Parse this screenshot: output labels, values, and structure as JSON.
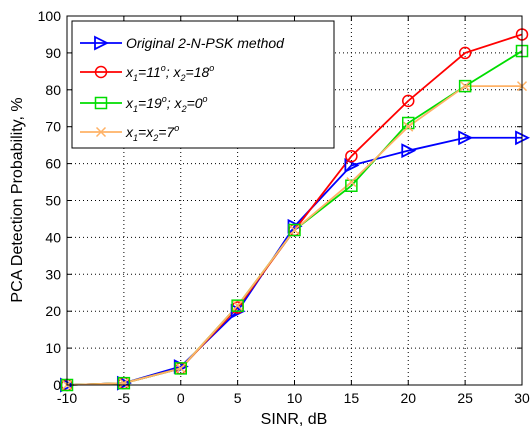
{
  "chart_data": {
    "type": "line",
    "xlabel": "SINR, dB",
    "ylabel": "PCA Detection Probability, %",
    "xlim": [
      -10,
      30
    ],
    "ylim": [
      0,
      100
    ],
    "x_ticks": [
      -10,
      -5,
      0,
      5,
      10,
      15,
      20,
      25,
      30
    ],
    "y_ticks": [
      0,
      10,
      20,
      30,
      40,
      50,
      60,
      70,
      80,
      90,
      100
    ],
    "grid": true,
    "legend_position": "top-left",
    "x": [
      -10,
      -5,
      0,
      5,
      10,
      15,
      20,
      25,
      30
    ],
    "series": [
      {
        "name": "Original 2-N-PSK method",
        "legend": {
          "text": "Original 2-N-PSK method"
        },
        "color": "#0000ff",
        "marker": "triangle-right",
        "values": [
          0,
          0.5,
          5,
          20,
          43,
          59.5,
          63.5,
          67,
          67
        ]
      },
      {
        "name": "x1=11o; x2=18o",
        "legend": {
          "p1": "x",
          "s1": "1",
          "p2": "=11",
          "sup1": "o",
          "p3": "; x",
          "s2": "2",
          "p4": "=18",
          "sup2": "o"
        },
        "color": "#ff0000",
        "marker": "circle",
        "values": [
          0,
          0.5,
          4.5,
          21,
          42,
          62,
          77,
          90,
          95
        ]
      },
      {
        "name": "x1=19o; x2=0o",
        "legend": {
          "p1": "x",
          "s1": "1",
          "p2": "=19",
          "sup1": "o",
          "p3": "; x",
          "s2": "2",
          "p4": "=0",
          "sup2": "o"
        },
        "color": "#00dd00",
        "marker": "square",
        "values": [
          0,
          0.5,
          4.5,
          21.5,
          42,
          54,
          71,
          81,
          90.5
        ]
      },
      {
        "name": "x1=x2=7o",
        "legend": {
          "p1": "x",
          "s1": "1",
          "p2": "=x",
          "sup1": "",
          "p3": "",
          "s2": "2",
          "p4": "=7",
          "sup2": "o"
        },
        "color": "#ffb266",
        "marker": "x",
        "values": [
          0,
          0.5,
          4.5,
          21.5,
          42,
          55,
          70,
          81,
          81
        ]
      }
    ]
  }
}
